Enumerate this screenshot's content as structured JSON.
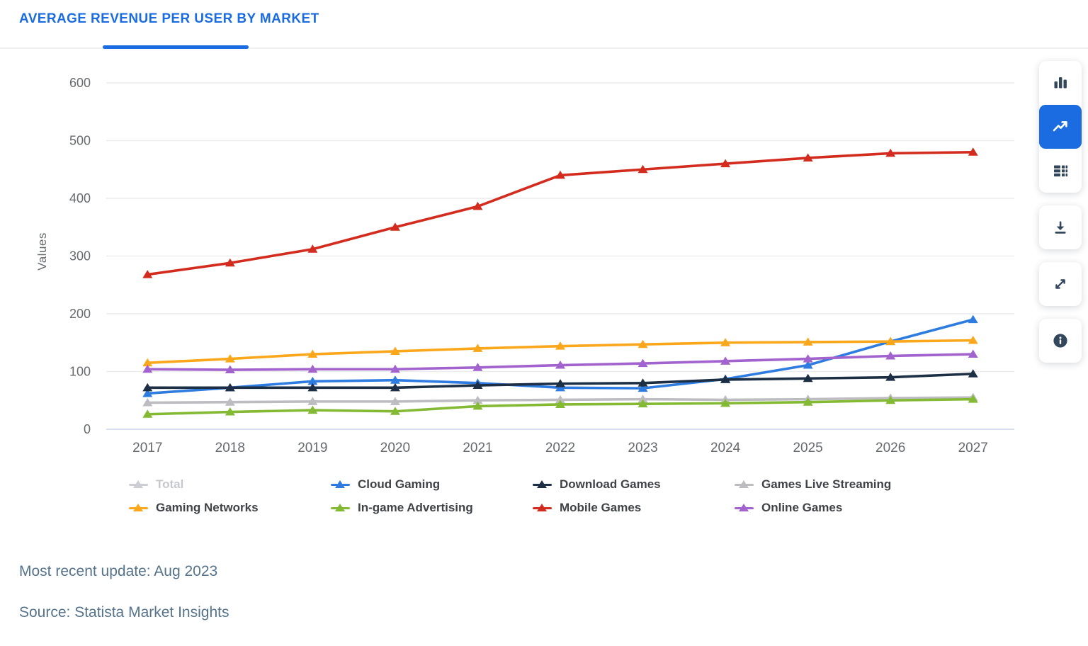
{
  "header": {
    "title": "AVERAGE REVENUE PER USER BY MARKET"
  },
  "toolbar": {
    "buttons": [
      {
        "name": "bar-chart-button",
        "icon": "bar-chart-icon",
        "group": "chart-type",
        "active": false
      },
      {
        "name": "line-chart-button",
        "icon": "line-chart-icon",
        "group": "chart-type",
        "active": true
      },
      {
        "name": "table-view-button",
        "icon": "table-icon",
        "group": "chart-type",
        "active": false
      },
      {
        "name": "download-button",
        "icon": "download-icon",
        "group": "single",
        "active": false
      },
      {
        "name": "fullscreen-button",
        "icon": "fullscreen-icon",
        "group": "single",
        "active": false
      },
      {
        "name": "info-button",
        "icon": "info-icon",
        "group": "single",
        "active": false
      }
    ]
  },
  "chart_data": {
    "type": "line",
    "title": "AVERAGE REVENUE PER USER BY MARKET",
    "xlabel": "",
    "ylabel": "Values",
    "ylim": [
      0,
      600
    ],
    "ytick_step": 100,
    "grid": true,
    "legend_position": "bottom",
    "marker": "triangle",
    "categories": [
      "2017",
      "2018",
      "2019",
      "2020",
      "2021",
      "2022",
      "2023",
      "2024",
      "2025",
      "2026",
      "2027"
    ],
    "series": [
      {
        "name": "Cloud Gaming",
        "color": "#2e7ce0",
        "values": [
          62,
          72,
          83,
          85,
          80,
          72,
          71,
          87,
          111,
          152,
          190
        ]
      },
      {
        "name": "Download Games",
        "color": "#1d2f45",
        "values": [
          72,
          72,
          72,
          72,
          76,
          79,
          80,
          86,
          88,
          90,
          96
        ]
      },
      {
        "name": "Games Live Streaming",
        "color": "#bcbcc1",
        "values": [
          46,
          47,
          48,
          48,
          50,
          51,
          52,
          51,
          52,
          54,
          55
        ]
      },
      {
        "name": "Gaming Networks",
        "color": "#fba71b",
        "values": [
          115,
          122,
          130,
          135,
          140,
          144,
          147,
          150,
          151,
          152,
          154
        ]
      },
      {
        "name": "In-game Advertising",
        "color": "#84ba33",
        "values": [
          26,
          30,
          33,
          31,
          40,
          43,
          44,
          45,
          47,
          50,
          52
        ]
      },
      {
        "name": "Mobile Games",
        "color": "#d32c1e",
        "values": [
          268,
          288,
          312,
          350,
          386,
          440,
          450,
          460,
          470,
          478,
          480
        ]
      },
      {
        "name": "Online Games",
        "color": "#a263cf",
        "values": [
          104,
          103,
          104,
          104,
          107,
          111,
          114,
          118,
          122,
          127,
          130
        ]
      }
    ]
  },
  "legend": {
    "items": [
      {
        "label": "Total",
        "color": "#cdced3",
        "disabled": true
      },
      {
        "label": "Cloud Gaming",
        "color": "#2e7ce0",
        "disabled": false
      },
      {
        "label": "Download Games",
        "color": "#1d2f45",
        "disabled": false
      },
      {
        "label": "Games Live Streaming",
        "color": "#bcbcc1",
        "disabled": false
      },
      {
        "label": "Gaming Networks",
        "color": "#fba71b",
        "disabled": false
      },
      {
        "label": "In-game Advertising",
        "color": "#84ba33",
        "disabled": false
      },
      {
        "label": "Mobile Games",
        "color": "#d32c1e",
        "disabled": false
      },
      {
        "label": "Online Games",
        "color": "#a263cf",
        "disabled": false
      }
    ]
  },
  "axes": {
    "y_tick_labels": [
      "0",
      "100",
      "200",
      "300",
      "400",
      "500",
      "600"
    ],
    "y_axis_title": "Values"
  },
  "footer": {
    "updated": "Most recent update: Aug 2023",
    "source": "Source: Statista Market Insights"
  },
  "colors": {
    "accent_blue": "#1a6ce0",
    "gridline": "#ececee",
    "baseline": "#ccd6eb",
    "tick_text": "#66696e",
    "footer_text": "#56738c",
    "toolbar_icon": "#33475c"
  }
}
